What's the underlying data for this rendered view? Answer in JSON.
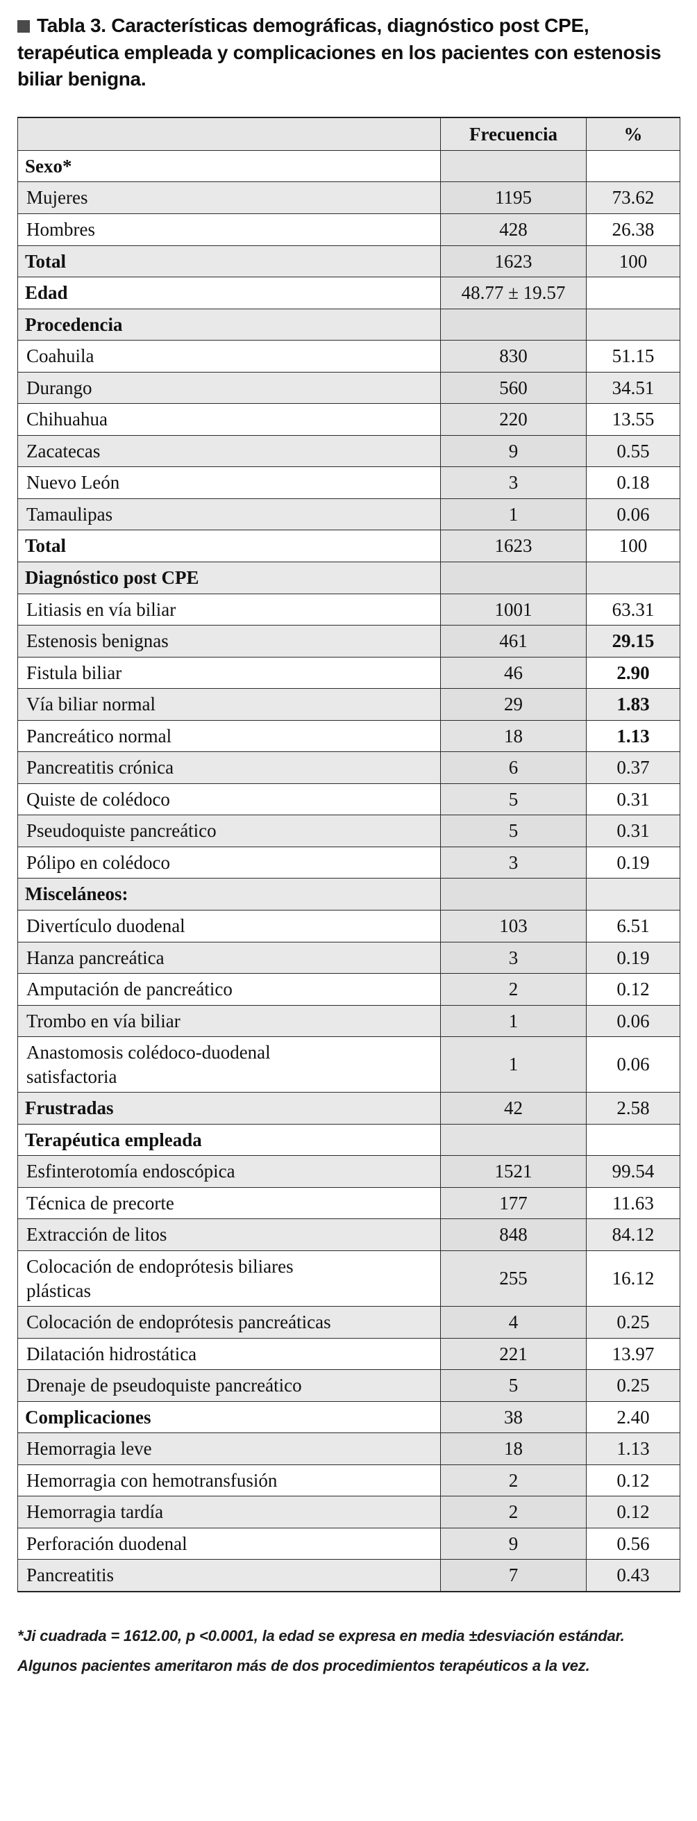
{
  "title": {
    "label": "Tabla 3.",
    "text": "Características demográficas, diagnóstico post CPE, terapéutica empleada y complicaciones en los pacientes con estenosis biliar benigna."
  },
  "colors": {
    "stripe_gray": "#e9e9e9",
    "freq_column_gray": "#e3e3e3",
    "header_gray": "#e6e6e6",
    "bullet_gray": "#4a4a4a",
    "border": "#2b2b2b"
  },
  "table": {
    "headers": [
      "",
      "Frecuencia",
      "%"
    ],
    "rows": [
      {
        "label": "Sexo*",
        "freq": "",
        "pct": "",
        "bold": true
      },
      {
        "label": "Mujeres",
        "freq": "1195",
        "pct": "73.62"
      },
      {
        "label": "Hombres",
        "freq": "428",
        "pct": "26.38"
      },
      {
        "label": "Total",
        "freq": "1623",
        "pct": "100",
        "bold": true
      },
      {
        "label": "Edad",
        "freq": "48.77 ± 19.57",
        "pct": "",
        "bold": true
      },
      {
        "label": "Procedencia",
        "freq": "",
        "pct": "",
        "bold": true
      },
      {
        "label": "Coahuila",
        "freq": "830",
        "pct": "51.15"
      },
      {
        "label": "Durango",
        "freq": "560",
        "pct": "34.51"
      },
      {
        "label": "Chihuahua",
        "freq": "220",
        "pct": "13.55"
      },
      {
        "label": "Zacatecas",
        "freq": "9",
        "pct": "0.55"
      },
      {
        "label": "Nuevo León",
        "freq": "3",
        "pct": "0.18"
      },
      {
        "label": "Tamaulipas",
        "freq": "1",
        "pct": "0.06"
      },
      {
        "label": "Total",
        "freq": "1623",
        "pct": "100",
        "bold": true
      },
      {
        "label": "Diagnóstico post CPE",
        "freq": "",
        "pct": "",
        "bold": true
      },
      {
        "label": "Litiasis en vía biliar",
        "freq": "1001",
        "pct": "63.31"
      },
      {
        "label": "Estenosis benignas",
        "freq": "461",
        "pct": "29.15",
        "pct_bold": true
      },
      {
        "label": "Fistula biliar",
        "freq": "46",
        "pct": "2.90",
        "pct_bold": true
      },
      {
        "label": "Vía biliar normal",
        "freq": "29",
        "pct": "1.83",
        "pct_bold": true
      },
      {
        "label": "Pancreático normal",
        "freq": "18",
        "pct": "1.13",
        "pct_bold": true
      },
      {
        "label": "Pancreatitis crónica",
        "freq": "6",
        "pct": "0.37"
      },
      {
        "label": "Quiste de colédoco",
        "freq": "5",
        "pct": "0.31"
      },
      {
        "label": "Pseudoquiste pancreático",
        "freq": "5",
        "pct": "0.31"
      },
      {
        "label": "Pólipo en colédoco",
        "freq": "3",
        "pct": "0.19"
      },
      {
        "label": "Misceláneos:",
        "freq": "",
        "pct": "",
        "bold": true
      },
      {
        "label": "Divertículo duodenal",
        "freq": "103",
        "pct": "6.51"
      },
      {
        "label": "Hanza pancreática",
        "freq": "3",
        "pct": "0.19"
      },
      {
        "label": "Amputación de pancreático",
        "freq": "2",
        "pct": "0.12"
      },
      {
        "label": "Trombo en vía biliar",
        "freq": "1",
        "pct": "0.06"
      },
      {
        "label": "Anastomosis colédoco-duodenal\nsatisfactoria",
        "freq": "1",
        "pct": "0.06"
      },
      {
        "label": "Frustradas",
        "freq": "42",
        "pct": "2.58",
        "bold": true
      },
      {
        "label": "Terapéutica empleada",
        "freq": "",
        "pct": "",
        "bold": true
      },
      {
        "label": "Esfinterotomía endoscópica",
        "freq": "1521",
        "pct": "99.54"
      },
      {
        "label": "Técnica de precorte",
        "freq": "177",
        "pct": "11.63"
      },
      {
        "label": "Extracción de litos",
        "freq": "848",
        "pct": "84.12"
      },
      {
        "label": "Colocación de endoprótesis biliares\nplásticas",
        "freq": "255",
        "pct": "16.12"
      },
      {
        "label": "Colocación de endoprótesis pancreáticas",
        "freq": "4",
        "pct": "0.25"
      },
      {
        "label": "Dilatación hidrostática",
        "freq": "221",
        "pct": "13.97"
      },
      {
        "label": "Drenaje de pseudoquiste pancreático",
        "freq": "5",
        "pct": "0.25"
      },
      {
        "label": "Complicaciones",
        "freq": "38",
        "pct": "2.40",
        "bold": true
      },
      {
        "label": "Hemorragia leve",
        "freq": "18",
        "pct": "1.13"
      },
      {
        "label": "Hemorragia con hemotransfusión",
        "freq": "2",
        "pct": "0.12"
      },
      {
        "label": "Hemorragia tardía",
        "freq": "2",
        "pct": "0.12"
      },
      {
        "label": "Perforación duodenal",
        "freq": "9",
        "pct": "0.56"
      },
      {
        "label": "Pancreatitis",
        "freq": "7",
        "pct": "0.43"
      }
    ]
  },
  "footnote": "*Ji cuadrada = 1612.00, p <0.0001, la edad se expresa en media ±desviación estándar. Algunos pacientes ameritaron más de dos procedimientos terapéuticos a la vez."
}
